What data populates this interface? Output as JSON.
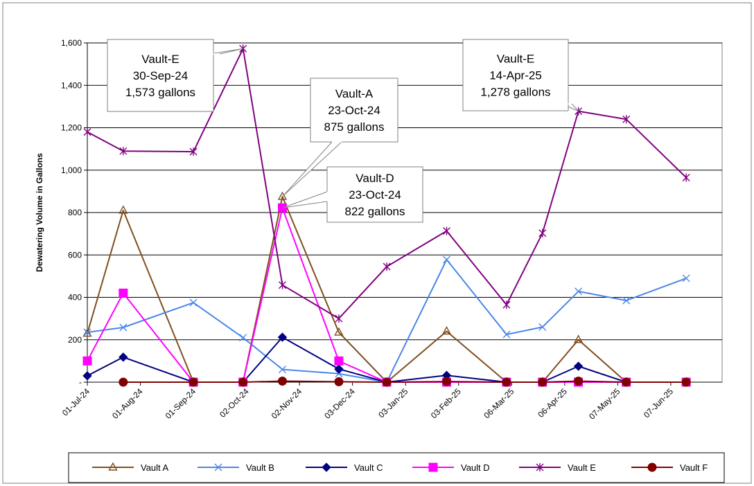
{
  "chart_data": {
    "type": "line",
    "title": "",
    "xlabel": "",
    "ylabel": "Dewatering Volume in Gallons",
    "ylim": [
      0,
      1600
    ],
    "y_ticks": [
      {
        "value": 0,
        "label": "-"
      },
      {
        "value": 200,
        "label": "200"
      },
      {
        "value": 400,
        "label": "400"
      },
      {
        "value": 600,
        "label": "600"
      },
      {
        "value": 800,
        "label": "800"
      },
      {
        "value": 1000,
        "label": "1,000"
      },
      {
        "value": 1200,
        "label": "1,200"
      },
      {
        "value": 1400,
        "label": "1,400"
      },
      {
        "value": 1600,
        "label": "1,600"
      }
    ],
    "x_range": [
      "2024-07-01",
      "2025-07-07"
    ],
    "x_ticks": [
      {
        "date": "2024-07-01",
        "label": "01-Jul-24"
      },
      {
        "date": "2024-08-01",
        "label": "01-Aug-24"
      },
      {
        "date": "2024-09-01",
        "label": "01-Sep-24"
      },
      {
        "date": "2024-10-02",
        "label": "02-Oct-24"
      },
      {
        "date": "2024-11-02",
        "label": "02-Nov-24"
      },
      {
        "date": "2024-12-03",
        "label": "03-Dec-24"
      },
      {
        "date": "2025-01-03",
        "label": "03-Jan-25"
      },
      {
        "date": "2025-02-03",
        "label": "03-Feb-25"
      },
      {
        "date": "2025-03-06",
        "label": "06-Mar-25"
      },
      {
        "date": "2025-04-06",
        "label": "06-Apr-25"
      },
      {
        "date": "2025-05-07",
        "label": "07-May-25"
      },
      {
        "date": "2025-06-07",
        "label": "07-Jun-25"
      }
    ],
    "grid": true,
    "legend_position": "bottom",
    "series": [
      {
        "name": "Vault A",
        "color": "#7f4e1e",
        "marker": "triangle",
        "points": [
          {
            "x": "2024-07-01",
            "y": 230
          },
          {
            "x": "2024-07-22",
            "y": 810
          },
          {
            "x": "2024-09-01",
            "y": 0
          },
          {
            "x": "2024-09-30",
            "y": 0
          },
          {
            "x": "2024-10-23",
            "y": 875
          },
          {
            "x": "2024-11-25",
            "y": 235
          },
          {
            "x": "2024-12-23",
            "y": 0
          },
          {
            "x": "2025-01-27",
            "y": 240
          },
          {
            "x": "2025-03-03",
            "y": 0
          },
          {
            "x": "2025-03-24",
            "y": 0
          },
          {
            "x": "2025-04-14",
            "y": 200
          },
          {
            "x": "2025-05-12",
            "y": 0
          },
          {
            "x": "2025-06-16",
            "y": 0
          }
        ]
      },
      {
        "name": "Vault B",
        "color": "#4a86e8",
        "marker": "x",
        "points": [
          {
            "x": "2024-07-01",
            "y": 235
          },
          {
            "x": "2024-07-22",
            "y": 258
          },
          {
            "x": "2024-09-01",
            "y": 375
          },
          {
            "x": "2024-09-30",
            "y": 210
          },
          {
            "x": "2024-10-23",
            "y": 60
          },
          {
            "x": "2024-11-25",
            "y": 40
          },
          {
            "x": "2024-12-23",
            "y": 0
          },
          {
            "x": "2025-01-27",
            "y": 578
          },
          {
            "x": "2025-03-03",
            "y": 225
          },
          {
            "x": "2025-03-24",
            "y": 260
          },
          {
            "x": "2025-04-14",
            "y": 428
          },
          {
            "x": "2025-05-12",
            "y": 385
          },
          {
            "x": "2025-06-16",
            "y": 490
          }
        ]
      },
      {
        "name": "Vault C",
        "color": "#000080",
        "marker": "diamond",
        "points": [
          {
            "x": "2024-07-01",
            "y": 30
          },
          {
            "x": "2024-07-22",
            "y": 118
          },
          {
            "x": "2024-09-01",
            "y": 0
          },
          {
            "x": "2024-09-30",
            "y": 0
          },
          {
            "x": "2024-10-23",
            "y": 212
          },
          {
            "x": "2024-11-25",
            "y": 62
          },
          {
            "x": "2024-12-23",
            "y": 0
          },
          {
            "x": "2025-01-27",
            "y": 32
          },
          {
            "x": "2025-03-03",
            "y": 0
          },
          {
            "x": "2025-03-24",
            "y": 0
          },
          {
            "x": "2025-04-14",
            "y": 75
          },
          {
            "x": "2025-05-12",
            "y": 0
          },
          {
            "x": "2025-06-16",
            "y": 0
          }
        ]
      },
      {
        "name": "Vault D",
        "color": "#ff00ff",
        "marker": "square",
        "points": [
          {
            "x": "2024-07-01",
            "y": 100
          },
          {
            "x": "2024-07-22",
            "y": 420
          },
          {
            "x": "2024-09-01",
            "y": 0
          },
          {
            "x": "2024-09-30",
            "y": 0
          },
          {
            "x": "2024-10-23",
            "y": 822
          },
          {
            "x": "2024-11-25",
            "y": 100
          },
          {
            "x": "2024-12-23",
            "y": 0
          },
          {
            "x": "2025-01-27",
            "y": 0
          },
          {
            "x": "2025-03-03",
            "y": 0
          },
          {
            "x": "2025-03-24",
            "y": 0
          },
          {
            "x": "2025-04-14",
            "y": 0
          },
          {
            "x": "2025-05-12",
            "y": 0
          },
          {
            "x": "2025-06-16",
            "y": 0
          }
        ]
      },
      {
        "name": "Vault E",
        "color": "#800080",
        "marker": "star",
        "points": [
          {
            "x": "2024-07-01",
            "y": 1180
          },
          {
            "x": "2024-07-22",
            "y": 1090
          },
          {
            "x": "2024-09-01",
            "y": 1087
          },
          {
            "x": "2024-09-30",
            "y": 1573
          },
          {
            "x": "2024-10-23",
            "y": 458
          },
          {
            "x": "2024-11-25",
            "y": 300
          },
          {
            "x": "2024-12-23",
            "y": 545
          },
          {
            "x": "2025-01-27",
            "y": 713
          },
          {
            "x": "2025-03-03",
            "y": 365
          },
          {
            "x": "2025-03-24",
            "y": 703
          },
          {
            "x": "2025-04-14",
            "y": 1278
          },
          {
            "x": "2025-05-12",
            "y": 1240
          },
          {
            "x": "2025-06-16",
            "y": 965
          }
        ]
      },
      {
        "name": "Vault F",
        "color": "#800000",
        "marker": "circle",
        "points": [
          {
            "x": "2024-07-22",
            "y": 0
          },
          {
            "x": "2024-09-01",
            "y": 0
          },
          {
            "x": "2024-09-30",
            "y": 0
          },
          {
            "x": "2024-10-23",
            "y": 5
          },
          {
            "x": "2024-11-25",
            "y": 2
          },
          {
            "x": "2024-12-23",
            "y": 0
          },
          {
            "x": "2025-01-27",
            "y": 3
          },
          {
            "x": "2025-03-03",
            "y": 0
          },
          {
            "x": "2025-03-24",
            "y": 0
          },
          {
            "x": "2025-04-14",
            "y": 5
          },
          {
            "x": "2025-05-12",
            "y": 0
          },
          {
            "x": "2025-06-16",
            "y": 0
          }
        ]
      }
    ],
    "annotations": [
      {
        "lines": [
          "Vault-E",
          "30-Sep-24",
          "1,573  gallons"
        ],
        "series": "Vault E",
        "x": "2024-09-30",
        "y": 1573
      },
      {
        "lines": [
          "Vault-A",
          "23-Oct-24",
          "875 gallons"
        ],
        "series": "Vault A",
        "x": "2024-10-23",
        "y": 875
      },
      {
        "lines": [
          "Vault-D",
          "23-Oct-24",
          "822 gallons"
        ],
        "series": "Vault D",
        "x": "2024-10-23",
        "y": 822
      },
      {
        "lines": [
          "Vault-E",
          "14-Apr-25",
          "1,278 gallons"
        ],
        "series": "Vault E",
        "x": "2025-04-14",
        "y": 1278
      }
    ]
  }
}
